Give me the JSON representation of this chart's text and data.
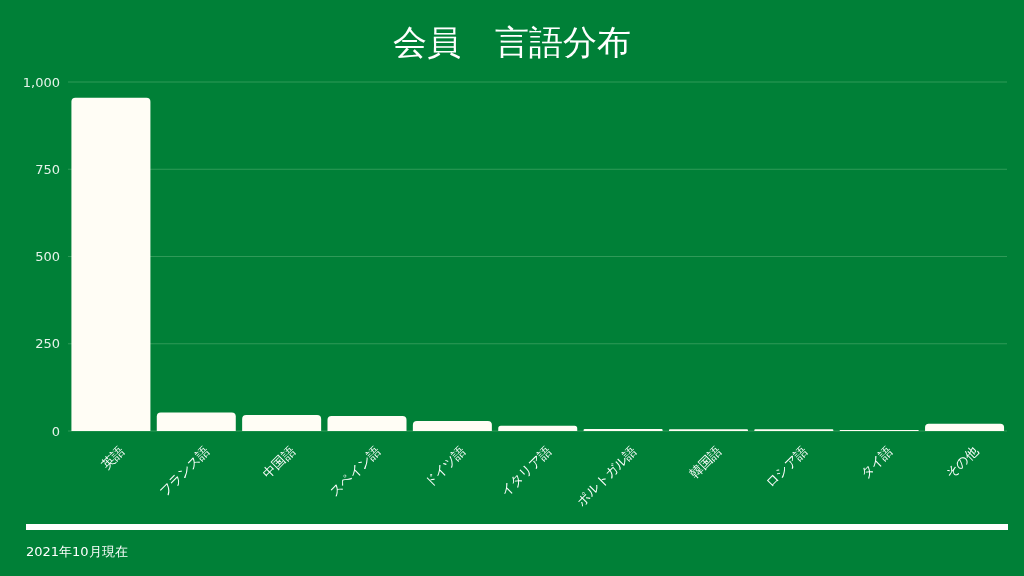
{
  "chart_data": {
    "type": "bar",
    "title": "会員　言語分布",
    "categories": [
      "英語",
      "フランス語",
      "中国語",
      "スペイン語",
      "ドイツ語",
      "イタリア語",
      "ポルトガル語",
      "韓国語",
      "ロシア語",
      "タイ語",
      "その他"
    ],
    "values": [
      955,
      53,
      46,
      43,
      29,
      15,
      6,
      5,
      5,
      3,
      21
    ],
    "color": "#fffdf5",
    "ylim": [
      0,
      1000
    ],
    "yticks": [
      0,
      250,
      500,
      750,
      {
        "value": 1000,
        "label": "1,000"
      }
    ],
    "grid": "y",
    "annotations": [
      "2021年10月現在"
    ]
  }
}
